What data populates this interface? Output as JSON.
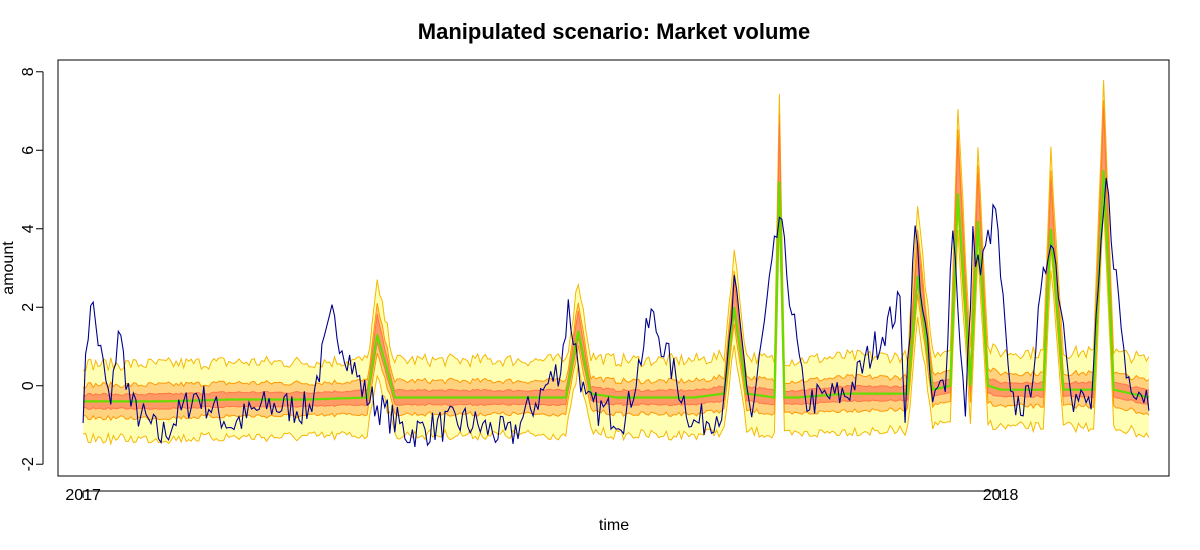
{
  "chart_data": {
    "type": "line",
    "title": "Manipulated scenario: Market volume",
    "xlabel": "time",
    "ylabel": "amount",
    "ylim": [
      -2.3,
      8.3
    ],
    "xlim": [
      "2016-12-22",
      "2018-03-09"
    ],
    "x_ticks": [
      {
        "date": "2017-01-01",
        "label": "2017"
      },
      {
        "date": "2018-01-01",
        "label": "2018"
      }
    ],
    "y_ticks": [
      {
        "value": -2,
        "label": "-2"
      },
      {
        "value": 0,
        "label": "0"
      },
      {
        "value": 2,
        "label": "2"
      },
      {
        "value": 4,
        "label": "4"
      },
      {
        "value": 6,
        "label": "6"
      },
      {
        "value": 8,
        "label": "8"
      }
    ],
    "grid": false,
    "legend": "none",
    "colors": {
      "observed": "#00008B",
      "median": "#66DD00",
      "band_outer_fill": "#FFFFB3",
      "band_middle_fill": "#FFD27F",
      "band_inner_fill": "#FF9966",
      "band_outer_edge": "#F5B800",
      "band_middle_edge": "#FF9900",
      "band_inner_edge": "#FF7744"
    },
    "median_series": {
      "x": [
        "2017-01-01",
        "2017-02-01",
        "2017-03-01",
        "2017-04-01",
        "2017-04-24",
        "2017-04-28",
        "2017-05-05",
        "2017-06-01",
        "2017-07-12",
        "2017-07-17",
        "2017-07-22",
        "2017-08-01",
        "2017-09-01",
        "2017-09-13",
        "2017-09-17",
        "2017-09-22",
        "2017-10-03",
        "2017-10-05",
        "2017-10-07",
        "2017-10-12",
        "2017-11-01",
        "2017-11-25",
        "2017-11-29",
        "2017-12-05",
        "2017-12-12",
        "2017-12-15",
        "2017-12-20",
        "2017-12-23",
        "2017-12-27",
        "2018-01-01",
        "2018-01-18",
        "2018-01-21",
        "2018-01-26",
        "2018-02-07",
        "2018-02-11",
        "2018-02-15",
        "2018-02-22",
        "2018-03-01"
      ],
      "y": [
        -0.4,
        -0.4,
        -0.35,
        -0.35,
        -0.3,
        1.3,
        -0.3,
        -0.3,
        -0.3,
        1.4,
        -0.2,
        -0.3,
        -0.3,
        -0.2,
        2.0,
        -0.2,
        -0.3,
        5.2,
        -0.3,
        -0.3,
        -0.2,
        -0.2,
        2.8,
        -0.1,
        0.0,
        4.9,
        0.0,
        4.2,
        0.0,
        -0.1,
        -0.1,
        4.0,
        -0.1,
        -0.1,
        5.5,
        -0.1,
        -0.2,
        -0.3
      ]
    },
    "observed_series": {
      "x": [
        "2017-01-01",
        "2017-01-04",
        "2017-01-08",
        "2017-01-12",
        "2017-01-15",
        "2017-01-20",
        "2017-02-01",
        "2017-02-15",
        "2017-03-01",
        "2017-03-15",
        "2017-04-01",
        "2017-04-10",
        "2017-04-23",
        "2017-05-10",
        "2017-06-01",
        "2017-06-20",
        "2017-07-10",
        "2017-07-13",
        "2017-07-20",
        "2017-08-05",
        "2017-08-15",
        "2017-09-01",
        "2017-09-13",
        "2017-09-17",
        "2017-09-24",
        "2017-10-05",
        "2017-10-15",
        "2017-11-01",
        "2017-11-22",
        "2017-11-24",
        "2017-11-28",
        "2017-12-05",
        "2017-12-10",
        "2017-12-13",
        "2017-12-18",
        "2017-12-21",
        "2017-12-24",
        "2017-12-30",
        "2018-01-05",
        "2018-01-12",
        "2018-01-18",
        "2018-01-21",
        "2018-01-30",
        "2018-02-06",
        "2018-02-12",
        "2018-02-20",
        "2018-03-01"
      ],
      "y": [
        -0.5,
        2.3,
        0.8,
        -0.6,
        1.5,
        -0.5,
        -1.3,
        -0.2,
        -1.0,
        -0.5,
        -0.6,
        1.7,
        -0.2,
        -1.2,
        -0.9,
        -1.3,
        0.5,
        2.0,
        -0.5,
        -0.8,
        1.8,
        -1.0,
        -0.6,
        2.5,
        -0.8,
        4.3,
        -0.4,
        -0.2,
        2.1,
        -0.6,
        4.0,
        -0.5,
        0.2,
        4.2,
        -0.9,
        3.7,
        2.9,
        4.5,
        -0.5,
        -0.4,
        2.6,
        4.0,
        -0.3,
        -0.5,
        5.2,
        0.3,
        -0.3
      ]
    }
  }
}
